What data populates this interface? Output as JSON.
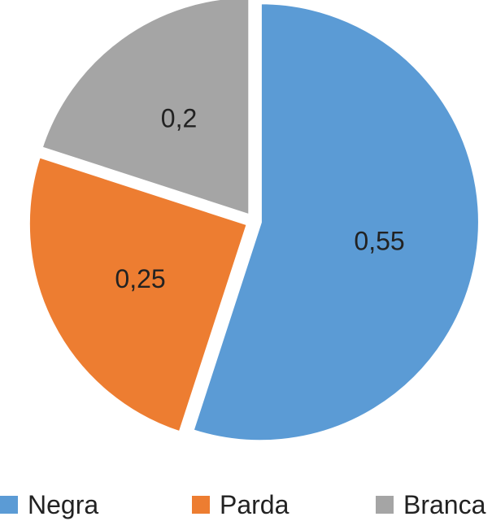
{
  "chart_data": {
    "type": "pie",
    "categories": [
      "Negra",
      "Parda",
      "Branca"
    ],
    "values": [
      0.55,
      0.25,
      0.2
    ],
    "value_labels": [
      "0,55",
      "0,25",
      "0,2"
    ],
    "colors": [
      "#5B9BD5",
      "#ED7D31",
      "#A5A5A5"
    ],
    "start_angle_deg": 0,
    "direction": "clockwise",
    "exploded": true,
    "legend_position": "bottom"
  },
  "legend": {
    "items": [
      {
        "label": "Negra",
        "color": "#5B9BD5"
      },
      {
        "label": "Parda",
        "color": "#ED7D31"
      },
      {
        "label": "Branca",
        "color": "#A5A5A5"
      }
    ]
  }
}
